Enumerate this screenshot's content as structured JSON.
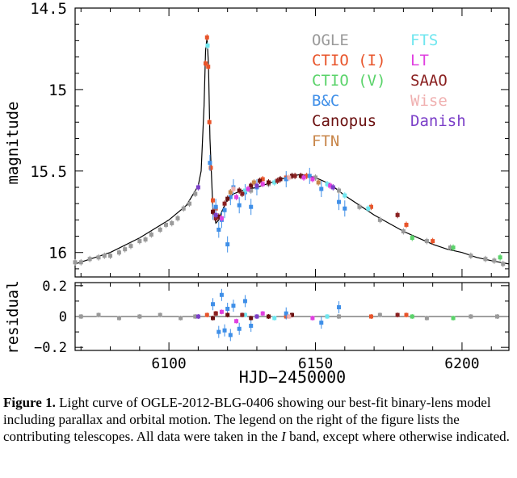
{
  "chart_data": [
    {
      "type": "scatter",
      "panel": "light curve",
      "ylabel": "magnitude",
      "y_inverted": true,
      "xlim": [
        6068,
        6216
      ],
      "ylim": [
        16.15,
        14.5
      ],
      "x_ticks": [
        "6100",
        "6150",
        "6200"
      ],
      "y_ticks": [
        "14.5",
        "15",
        "15.5",
        "16"
      ],
      "legend_placement": "top-right",
      "legend": [
        {
          "name": "OGLE",
          "color": "#9a9a9a"
        },
        {
          "name": "CTIO (I)",
          "color": "#e8542a"
        },
        {
          "name": "CTIO (V)",
          "color": "#5ad36a"
        },
        {
          "name": "B&C",
          "color": "#3f8fe8"
        },
        {
          "name": "Canopus",
          "color": "#6b1010"
        },
        {
          "name": "FTN",
          "color": "#c8864a"
        },
        {
          "name": "FTS",
          "color": "#6fe6ef"
        },
        {
          "name": "LT",
          "color": "#e040e0"
        },
        {
          "name": "SAAO",
          "color": "#8a2020"
        },
        {
          "name": "Wise",
          "color": "#f0b0b0"
        },
        {
          "name": "Danish",
          "color": "#7b3fc8"
        }
      ],
      "model_curve": {
        "x": [
          6068,
          6080,
          6090,
          6100,
          6106,
          6110,
          6111,
          6112,
          6112.5,
          6113,
          6113.5,
          6114,
          6115,
          6116,
          6117,
          6118,
          6120,
          6122,
          6125,
          6130,
          6135,
          6140,
          6145,
          6150,
          6155,
          6160,
          6165,
          6170,
          6175,
          6180,
          6185,
          6190,
          6195,
          6200,
          6205,
          6210,
          6216
        ],
        "y": [
          16.07,
          16.0,
          15.91,
          15.8,
          15.71,
          15.59,
          15.5,
          15.1,
          14.76,
          14.68,
          14.85,
          15.3,
          15.73,
          15.82,
          15.8,
          15.75,
          15.67,
          15.64,
          15.62,
          15.6,
          15.57,
          15.54,
          15.52,
          15.54,
          15.58,
          15.65,
          15.71,
          15.77,
          15.82,
          15.87,
          15.91,
          15.95,
          15.98,
          16.0,
          16.03,
          16.05,
          16.07
        ]
      },
      "series": [
        {
          "name": "OGLE",
          "points": [
            [
              6068,
              16.06
            ],
            [
              6070,
              16.06
            ],
            [
              6073,
              16.04
            ],
            [
              6076,
              16.03
            ],
            [
              6078,
              16.02
            ],
            [
              6080,
              16.02
            ],
            [
              6083,
              16.0
            ],
            [
              6085,
              15.98
            ],
            [
              6087,
              15.96
            ],
            [
              6090,
              15.93
            ],
            [
              6092,
              15.92
            ],
            [
              6094,
              15.89
            ],
            [
              6097,
              15.86
            ],
            [
              6099,
              15.83
            ],
            [
              6101,
              15.82
            ],
            [
              6103,
              15.79
            ],
            [
              6105,
              15.73
            ],
            [
              6107,
              15.7
            ],
            [
              6109,
              15.64
            ],
            [
              6128,
              15.62
            ],
            [
              6134,
              15.58
            ],
            [
              6150,
              15.54
            ],
            [
              6158,
              15.62
            ],
            [
              6165,
              15.72
            ],
            [
              6172,
              15.8
            ],
            [
              6180,
              15.87
            ],
            [
              6188,
              15.93
            ],
            [
              6196,
              15.97
            ],
            [
              6203,
              16.02
            ],
            [
              6208,
              16.04
            ],
            [
              6211,
              16.05
            ],
            [
              6214,
              16.07
            ]
          ]
        },
        {
          "name": "CTIO (I)",
          "points": [
            [
              6112.5,
              14.84
            ],
            [
              6113,
              14.68
            ],
            [
              6113.4,
              14.86
            ],
            [
              6113.8,
              15.2
            ],
            [
              6114.3,
              15.48
            ],
            [
              6115,
              15.68
            ],
            [
              6116,
              15.73
            ],
            [
              6132,
              15.55
            ],
            [
              6140,
              15.54
            ],
            [
              6147,
              15.53
            ],
            [
              6169,
              15.72
            ],
            [
              6181,
              15.83
            ],
            [
              6190,
              15.93
            ]
          ]
        },
        {
          "name": "CTIO (V)",
          "points": [
            [
              6183,
              15.91
            ],
            [
              6197,
              15.97
            ],
            [
              6213,
              16.03
            ]
          ]
        },
        {
          "name": "B&C",
          "points": [
            [
              6114,
              15.45
            ],
            [
              6115,
              15.75
            ],
            [
              6116,
              15.72
            ],
            [
              6117,
              15.86
            ],
            [
              6118,
              15.8
            ],
            [
              6119,
              15.74
            ],
            [
              6120,
              15.95
            ],
            [
              6121,
              15.66
            ],
            [
              6122,
              15.6
            ],
            [
              6124,
              15.71
            ],
            [
              6126,
              15.63
            ],
            [
              6128,
              15.72
            ],
            [
              6130,
              15.6
            ],
            [
              6140,
              15.55
            ],
            [
              6148,
              15.53
            ],
            [
              6152,
              15.61
            ],
            [
              6158,
              15.69
            ],
            [
              6160,
              15.73
            ]
          ]
        },
        {
          "name": "Canopus",
          "points": [
            [
              6115,
              15.75
            ],
            [
              6117,
              15.78
            ],
            [
              6120,
              15.67
            ],
            [
              6124,
              15.62
            ],
            [
              6128,
              15.59
            ],
            [
              6131,
              15.56
            ],
            [
              6134,
              15.57
            ],
            [
              6138,
              15.55
            ],
            [
              6142,
              15.53
            ],
            [
              6145,
              15.53
            ]
          ]
        },
        {
          "name": "FTN",
          "points": [
            [
              6121,
              15.63
            ],
            [
              6129,
              15.57
            ],
            [
              6151,
              15.57
            ]
          ]
        },
        {
          "name": "FTS",
          "points": [
            [
              6113.2,
              14.73
            ],
            [
              6126,
              15.62
            ],
            [
              6136,
              15.57
            ],
            [
              6154,
              15.58
            ],
            [
              6160,
              15.65
            ],
            [
              6168,
              15.73
            ]
          ]
        },
        {
          "name": "LT",
          "points": [
            [
              6118,
              15.79
            ],
            [
              6123,
              15.66
            ],
            [
              6127,
              15.61
            ],
            [
              6132,
              15.58
            ],
            [
              6146,
              15.54
            ],
            [
              6149,
              15.55
            ],
            [
              6155,
              15.59
            ]
          ]
        },
        {
          "name": "SAAO",
          "points": [
            [
              6116,
              15.79
            ],
            [
              6119,
              15.7
            ],
            [
              6125,
              15.64
            ],
            [
              6137,
              15.56
            ],
            [
              6143,
              15.53
            ],
            [
              6178,
              15.77
            ]
          ]
        },
        {
          "name": "Wise",
          "points": [
            [
              6122,
              15.61
            ],
            [
              6141,
              15.54
            ]
          ]
        },
        {
          "name": "Danish",
          "points": [
            [
              6110,
              15.6
            ],
            [
              6116,
              15.77
            ],
            [
              6130,
              15.59
            ],
            [
              6156,
              15.6
            ]
          ]
        }
      ]
    },
    {
      "type": "scatter",
      "panel": "residuals",
      "ylabel": "residual",
      "xlabel": "HJD−2450000",
      "xlim": [
        6068,
        6216
      ],
      "ylim": [
        -0.22,
        0.22
      ],
      "x_ticks": [
        "6100",
        "6150",
        "6200"
      ],
      "y_ticks": [
        "0.2",
        "0",
        "−0.2"
      ],
      "series": [
        {
          "name": "OGLE",
          "points": [
            [
              6070,
              0.0
            ],
            [
              6076,
              0.01
            ],
            [
              6083,
              -0.01
            ],
            [
              6090,
              0.0
            ],
            [
              6097,
              0.01
            ],
            [
              6104,
              -0.01
            ],
            [
              6109,
              0.0
            ],
            [
              6158,
              0.0
            ],
            [
              6172,
              0.01
            ],
            [
              6188,
              -0.01
            ],
            [
              6203,
              0.0
            ],
            [
              6212,
              0.0
            ]
          ]
        },
        {
          "name": "CTIO (I)",
          "points": [
            [
              6113,
              0.01
            ],
            [
              6116,
              0.02
            ],
            [
              6140,
              0.0
            ],
            [
              6169,
              0.0
            ],
            [
              6181,
              0.01
            ]
          ]
        },
        {
          "name": "CTIO (V)",
          "points": [
            [
              6183,
              0.0
            ],
            [
              6197,
              -0.01
            ]
          ]
        },
        {
          "name": "B&C",
          "points": [
            [
              6115,
              0.08
            ],
            [
              6117,
              -0.1
            ],
            [
              6118,
              0.14
            ],
            [
              6119,
              -0.09
            ],
            [
              6120,
              0.05
            ],
            [
              6121,
              -0.12
            ],
            [
              6122,
              0.07
            ],
            [
              6124,
              -0.08
            ],
            [
              6126,
              0.1
            ],
            [
              6128,
              -0.06
            ],
            [
              6140,
              0.02
            ],
            [
              6152,
              -0.04
            ],
            [
              6158,
              0.06
            ]
          ]
        },
        {
          "name": "Canopus",
          "points": [
            [
              6115,
              -0.01
            ],
            [
              6120,
              0.01
            ],
            [
              6128,
              -0.01
            ],
            [
              6134,
              0.0
            ],
            [
              6142,
              0.01
            ]
          ]
        },
        {
          "name": "FTS",
          "points": [
            [
              6126,
              0.01
            ],
            [
              6136,
              -0.01
            ],
            [
              6154,
              0.0
            ]
          ]
        },
        {
          "name": "LT",
          "points": [
            [
              6118,
              0.03
            ],
            [
              6123,
              -0.03
            ],
            [
              6132,
              0.02
            ],
            [
              6149,
              -0.01
            ]
          ]
        },
        {
          "name": "SAAO",
          "points": [
            [
              6116,
              0.02
            ],
            [
              6125,
              0.01
            ],
            [
              6178,
              0.01
            ]
          ]
        },
        {
          "name": "Wise",
          "points": [
            [
              6141,
              0.0
            ]
          ]
        },
        {
          "name": "Danish",
          "points": [
            [
              6110,
              0.0
            ],
            [
              6130,
              0.0
            ]
          ]
        }
      ]
    }
  ],
  "caption": {
    "label": "Figure 1.",
    "text_before_italic": " Light curve of OGLE-2012-BLG-0406 showing our best-fit binary-lens model including parallax and orbital motion. The legend on the right of the figure lists the contributing telescopes. All data were taken in the ",
    "italic": "I",
    "text_after_italic": " band, except where otherwise indicated."
  }
}
